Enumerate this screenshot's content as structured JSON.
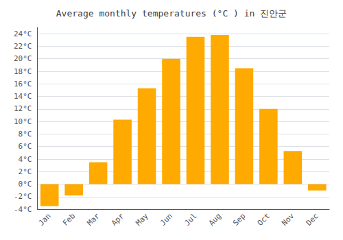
{
  "chart_data": {
    "type": "bar",
    "title": "Average monthly temperatures (°C ) in 진안군",
    "categories": [
      "Jan",
      "Feb",
      "Mar",
      "Apr",
      "May",
      "Jun",
      "Jul",
      "Aug",
      "Sep",
      "Oct",
      "Nov",
      "Dec"
    ],
    "values": [
      -3.5,
      -1.8,
      3.5,
      10.3,
      15.3,
      20.0,
      23.5,
      23.8,
      18.5,
      12.0,
      5.3,
      -1.0
    ],
    "color": "#FFAA00",
    "ylim": [
      -4,
      25
    ],
    "yticks": [
      {
        "value": -4,
        "label": "-4°C"
      },
      {
        "value": -2,
        "label": "-2°C"
      },
      {
        "value": 0,
        "label": "0°C"
      },
      {
        "value": 2,
        "label": "2°C"
      },
      {
        "value": 4,
        "label": "4°C"
      },
      {
        "value": 6,
        "label": "6°C"
      },
      {
        "value": 8,
        "label": "8°C"
      },
      {
        "value": 10,
        "label": "10°C"
      },
      {
        "value": 12,
        "label": "12°C"
      },
      {
        "value": 14,
        "label": "14°C"
      },
      {
        "value": 16,
        "label": "16°C"
      },
      {
        "value": 18,
        "label": "18°C"
      },
      {
        "value": 20,
        "label": "20°C"
      },
      {
        "value": 22,
        "label": "22°C"
      },
      {
        "value": 24,
        "label": "24°C"
      }
    ],
    "grid": true
  }
}
